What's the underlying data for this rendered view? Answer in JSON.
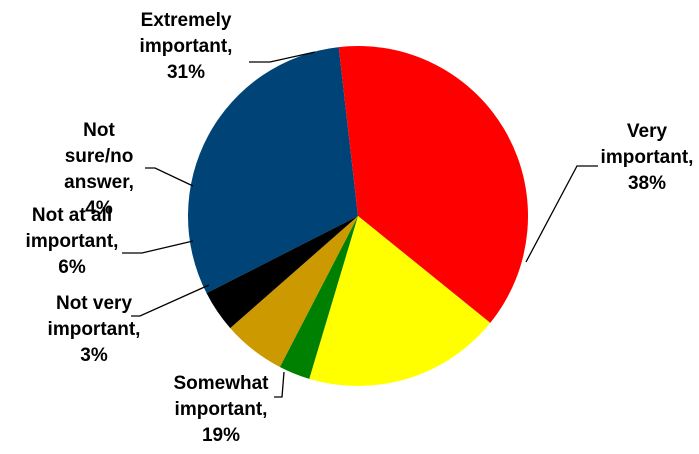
{
  "chart_data": {
    "type": "pie",
    "title": "",
    "slices": [
      {
        "label_lines": [
          "Extremely",
          "important,",
          "31%"
        ],
        "name": "Extremely important",
        "value": 31,
        "color": "#004477"
      },
      {
        "label_lines": [
          "Very",
          "important,",
          "38%"
        ],
        "name": "Very important",
        "value": 38,
        "color": "#ff0000"
      },
      {
        "label_lines": [
          "Somewhat",
          "important,",
          "19%"
        ],
        "name": "Somewhat important",
        "value": 19,
        "color": "#ffff00"
      },
      {
        "label_lines": [
          "Not very",
          "important,",
          "3%"
        ],
        "name": "Not very important",
        "value": 3,
        "color": "#008000"
      },
      {
        "label_lines": [
          "Not at all",
          "important,",
          "6%"
        ],
        "name": "Not at all important",
        "value": 6,
        "color": "#cc9900"
      },
      {
        "label_lines": [
          "Not",
          "sure/no",
          "answer,",
          "4%"
        ],
        "name": "Not sure/no answer",
        "value": 4,
        "color": "#000000"
      }
    ],
    "legend": "none",
    "labels_outside": true
  }
}
